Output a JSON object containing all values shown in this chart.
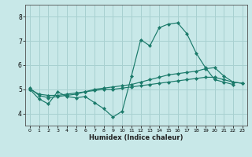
{
  "xlabel": "Humidex (Indice chaleur)",
  "background_color": "#c8e8e8",
  "grid_color": "#a8d0d0",
  "line_color": "#1a7a6a",
  "xlim": [
    -0.5,
    23.5
  ],
  "ylim": [
    3.5,
    8.5
  ],
  "yticks": [
    4,
    5,
    6,
    7,
    8
  ],
  "xticks": [
    0,
    1,
    2,
    3,
    4,
    5,
    6,
    7,
    8,
    9,
    10,
    11,
    12,
    13,
    14,
    15,
    16,
    17,
    18,
    19,
    20,
    21,
    22,
    23
  ],
  "series": [
    {
      "x": [
        0,
        1,
        2,
        3,
        4,
        5,
        6,
        7,
        8,
        9,
        10,
        11,
        12,
        13,
        14,
        15,
        16,
        17,
        18,
        19,
        20,
        21,
        22,
        23
      ],
      "y": [
        5.0,
        4.6,
        4.4,
        4.9,
        4.7,
        4.65,
        4.7,
        4.45,
        4.2,
        3.85,
        4.1,
        5.55,
        7.05,
        6.8,
        7.55,
        7.7,
        7.75,
        7.3,
        6.5,
        5.9,
        5.4,
        5.3,
        5.2,
        null
      ]
    },
    {
      "x": [
        0,
        1,
        2,
        3,
        4,
        5,
        6,
        7,
        8,
        9,
        10,
        11,
        12,
        13,
        14,
        15,
        16,
        17,
        18,
        19,
        20,
        21,
        22,
        23
      ],
      "y": [
        5.05,
        4.75,
        4.65,
        4.7,
        4.75,
        4.8,
        4.9,
        5.0,
        5.05,
        5.1,
        5.15,
        5.2,
        5.3,
        5.4,
        5.5,
        5.6,
        5.65,
        5.7,
        5.75,
        5.85,
        5.9,
        5.55,
        5.3,
        5.25
      ]
    },
    {
      "x": [
        0,
        1,
        2,
        3,
        4,
        5,
        6,
        7,
        8,
        9,
        10,
        11,
        12,
        13,
        14,
        15,
        16,
        17,
        18,
        19,
        20,
        21,
        22,
        23
      ],
      "y": [
        5.0,
        4.8,
        4.75,
        4.75,
        4.8,
        4.85,
        4.9,
        4.95,
        5.0,
        5.0,
        5.05,
        5.1,
        5.15,
        5.2,
        5.25,
        5.3,
        5.35,
        5.4,
        5.45,
        5.5,
        5.5,
        5.4,
        5.3,
        5.25
      ]
    }
  ]
}
